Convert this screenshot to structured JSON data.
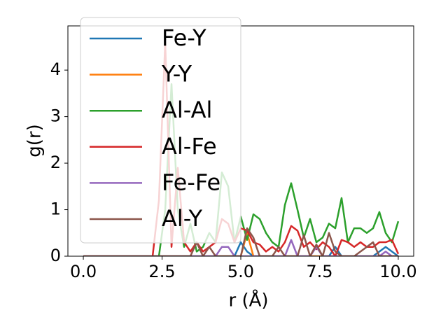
{
  "chart_data": {
    "type": "line",
    "x": [
      0,
      0.2,
      0.4,
      0.6,
      0.8,
      1.0,
      1.2,
      1.4,
      1.6,
      1.8,
      2.0,
      2.2,
      2.4,
      2.6,
      2.8,
      3.0,
      3.2,
      3.4,
      3.6,
      3.8,
      4.0,
      4.2,
      4.4,
      4.6,
      4.8,
      5.0,
      5.2,
      5.4,
      5.6,
      5.8,
      6.0,
      6.2,
      6.4,
      6.6,
      6.8,
      7.0,
      7.2,
      7.4,
      7.6,
      7.8,
      8.0,
      8.2,
      8.4,
      8.6,
      8.8,
      9.0,
      9.2,
      9.4,
      9.6,
      9.8,
      10.0
    ],
    "series": [
      {
        "name": "Fe-Y",
        "color": "#1f77b4",
        "values": [
          0,
          0,
          0,
          0,
          0,
          0,
          0,
          0,
          0,
          0,
          0,
          0,
          0,
          0,
          0,
          0,
          0,
          0,
          0,
          0,
          0,
          0,
          0,
          0,
          0,
          0.3,
          0.1,
          0,
          0,
          0,
          0,
          0,
          0,
          0,
          0,
          0,
          0,
          0,
          0,
          0,
          0.2,
          0,
          0,
          0,
          0,
          0,
          0,
          0.1,
          0.2,
          0.1,
          0
        ]
      },
      {
        "name": "Y-Y",
        "color": "#ff7f0e",
        "values": [
          0,
          0,
          0,
          0,
          0,
          0,
          0,
          0,
          0,
          0,
          0,
          0,
          0,
          0,
          0,
          0,
          0,
          0,
          0,
          0,
          0,
          0,
          0,
          0,
          0,
          0,
          0.5,
          0,
          0,
          0,
          0,
          0,
          0,
          0,
          0,
          0,
          0,
          0,
          0,
          0,
          0,
          0,
          0,
          0,
          0,
          0,
          0,
          0,
          0,
          0,
          0
        ]
      },
      {
        "name": "Al-Al",
        "color": "#2ca02c",
        "values": [
          0,
          0,
          0,
          0,
          0,
          0,
          0,
          0,
          0,
          0,
          0,
          0,
          0,
          1.0,
          3.7,
          1.0,
          0.2,
          0.7,
          0.1,
          0.2,
          0.5,
          0.3,
          1.8,
          1.5,
          0.3,
          0.85,
          0.35,
          0.9,
          0.8,
          0.5,
          0.3,
          0.2,
          1.1,
          1.57,
          1.0,
          0.4,
          0.8,
          0.3,
          0.4,
          0.7,
          0.6,
          1.25,
          0.3,
          0.6,
          0.6,
          0.5,
          0.6,
          0.95,
          0.5,
          0.3,
          0.75
        ]
      },
      {
        "name": "Al-Fe",
        "color": "#d62728",
        "values": [
          0,
          0,
          0,
          0,
          0,
          0,
          0,
          0,
          0,
          0,
          0,
          0,
          1.2,
          4.6,
          0.2,
          1.9,
          0.3,
          0.1,
          0.3,
          0.1,
          0.2,
          0.3,
          0.8,
          0.7,
          0.3,
          0.6,
          0.55,
          0.3,
          0.25,
          0.1,
          0.2,
          0.1,
          0.3,
          0.65,
          0.55,
          0.2,
          0.3,
          0.15,
          0.3,
          0.2,
          0,
          0.35,
          0.3,
          0.2,
          0.3,
          0.2,
          0.2,
          0.3,
          0.3,
          0.35,
          0.05
        ]
      },
      {
        "name": "Fe-Fe",
        "color": "#9467bd",
        "values": [
          0,
          0,
          0,
          0,
          0,
          0,
          0,
          0,
          0,
          0,
          0,
          0,
          0,
          0,
          0,
          0,
          0,
          0,
          0,
          0,
          0,
          0,
          0.2,
          0.2,
          0,
          0,
          0,
          0,
          0,
          0,
          0,
          0,
          0,
          0.35,
          0,
          0,
          0,
          0.2,
          0,
          0,
          0,
          0,
          0,
          0,
          0,
          0,
          0,
          0,
          0.1,
          0,
          0
        ]
      },
      {
        "name": "Al-Y",
        "color": "#8c564b",
        "values": [
          0,
          0,
          0,
          0,
          0,
          0,
          0,
          0,
          0,
          0,
          0,
          0,
          0,
          0,
          0,
          0,
          0,
          0,
          0.3,
          0,
          0.2,
          0,
          0,
          0,
          0,
          0,
          0.6,
          0.4,
          0,
          0,
          0,
          0.2,
          0,
          0,
          0,
          0.45,
          0,
          0.25,
          0,
          0.5,
          0.1,
          0,
          0,
          0,
          0.1,
          0.2,
          0.3,
          0,
          0,
          0,
          0
        ]
      }
    ],
    "xlabel": "r (Å)",
    "ylabel": "g(r)",
    "xlim": [
      -0.49,
      10.49
    ],
    "ylim": [
      0,
      4.95
    ],
    "xticks": [
      {
        "value": 0,
        "label": "0.0"
      },
      {
        "value": 2.5,
        "label": "2.5"
      },
      {
        "value": 5,
        "label": "5.0"
      },
      {
        "value": 7.5,
        "label": "7.5"
      },
      {
        "value": 10,
        "label": "10.0"
      }
    ],
    "yticks": [
      0,
      1,
      2,
      3,
      4
    ],
    "legend": "upper left"
  }
}
